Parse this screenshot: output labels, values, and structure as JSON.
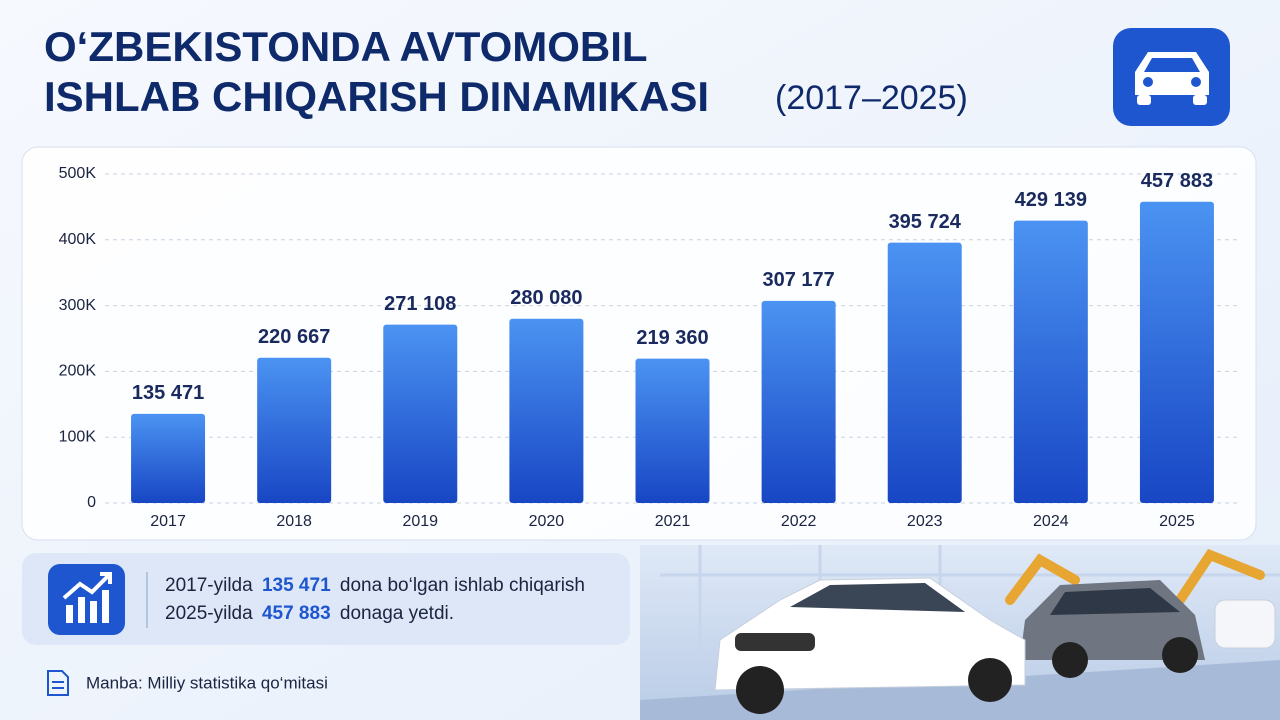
{
  "chart_data": {
    "type": "bar",
    "title": [
      "O‘ZBEKISTONDA AVTOMOBIL",
      "ISHLAB CHIQARISH DINAMIKASI"
    ],
    "subtitle": "(2017–2025)",
    "categories": [
      "2017",
      "2018",
      "2019",
      "2020",
      "2021",
      "2022",
      "2023",
      "2024",
      "2025"
    ],
    "values": [
      135471,
      220667,
      271108,
      280080,
      219360,
      307177,
      395724,
      429139,
      457883
    ],
    "value_labels": [
      "135 471",
      "220 667",
      "271 108",
      "280 080",
      "219 360",
      "307 177",
      "395 724",
      "429 139",
      "457 883"
    ],
    "color": "#2f6fe4",
    "ylim": [
      0,
      500000
    ],
    "yticks": [
      0,
      {
        "value": 100000,
        "label": "100K"
      },
      {
        "value": 200000,
        "label": "200K"
      },
      {
        "value": 300000,
        "label": "300K"
      },
      {
        "value": 400000,
        "label": "400K"
      },
      {
        "value": 500000,
        "label": "500K"
      }
    ],
    "grid": true
  },
  "summary": {
    "line1": [
      "2017-yilda",
      "135 471",
      "dona bo‘lgan ishlab chiqarish"
    ],
    "line2": [
      "2025-yilda",
      "457 883",
      "donaga yetdi."
    ]
  },
  "source": "Manba: Milliy statistika qo‘mitasi"
}
